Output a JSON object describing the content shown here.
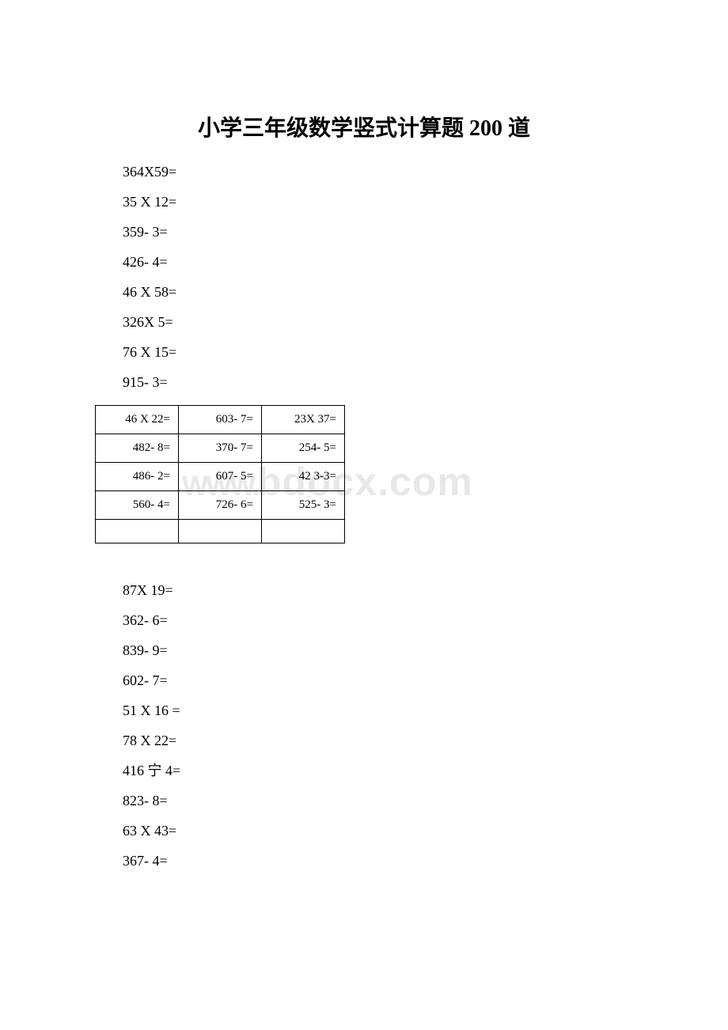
{
  "title": "小学三年级数学竖式计算题 200 道",
  "problems_top": [
    "364X59=",
    "35 X 12=",
    "359- 3=",
    "426- 4=",
    "46 X 58=",
    "326X 5=",
    "76 X 15=",
    "915- 3="
  ],
  "table": {
    "rows": [
      [
        "46 X 22=",
        "603- 7=",
        "23X 37="
      ],
      [
        "482- 8=",
        "370- 7=",
        "254- 5="
      ],
      [
        "486- 2=",
        "607- 5=",
        "42 3-3="
      ],
      [
        "560- 4=",
        "726- 6=",
        "525- 3="
      ],
      [
        "",
        "",
        ""
      ]
    ]
  },
  "problems_bottom": [
    "87X 19=",
    "362- 6=",
    "839- 9=",
    "602- 7=",
    "51 X 16 =",
    "78 X 22=",
    "416 宁 4=",
    "823- 8=",
    "63 X 43=",
    "367- 4="
  ],
  "watermark": {
    "prefix": "WWW.",
    "main": "bdocx.com"
  },
  "colors": {
    "background": "#ffffff",
    "text": "#000000",
    "border": "#000000",
    "watermark": "#e8e8e8"
  },
  "fonts": {
    "title_size": 28,
    "body_size": 18,
    "table_size": 15,
    "watermark_size": 50
  }
}
